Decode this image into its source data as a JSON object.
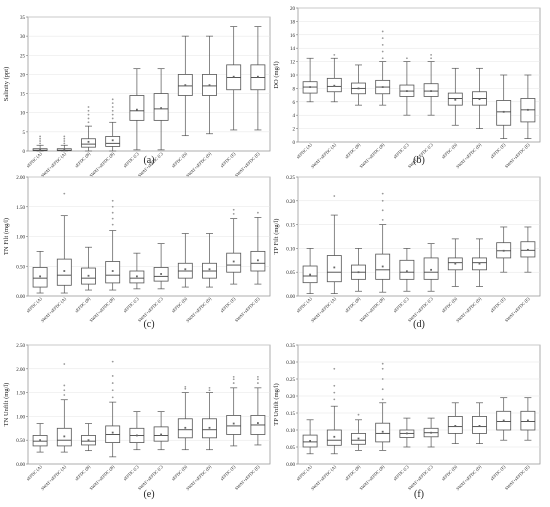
{
  "chart_data": [
    {
      "type": "box",
      "panel_label": "(a)",
      "ylabel": "Salinity (ppt)",
      "yticks": [
        0,
        5,
        10,
        15,
        20,
        25,
        30,
        35
      ],
      "ylim": [
        0,
        35
      ],
      "categories": [
        "sEFDC (A)",
        "SWAT+sEFDC (A)",
        "sEFDC (B)",
        "SWAT+sEFDC (B)",
        "sEFDC (C)",
        "SWAT+sEFDC (C)",
        "sEFDC (D)",
        "SWAT+sEFDC (D)",
        "sEFDC (E)",
        "SWAT+sEFDC (E)"
      ],
      "boxes": [
        {
          "min": 0,
          "q1": 0.1,
          "median": 0.2,
          "q3": 0.6,
          "max": 1.5,
          "mean": 0.4,
          "outliers": [
            2,
            2.6,
            3.2,
            3.8
          ]
        },
        {
          "min": 0,
          "q1": 0.1,
          "median": 0.2,
          "q3": 0.6,
          "max": 1.5,
          "mean": 0.4,
          "outliers": [
            2,
            2.6,
            3.2,
            3.8
          ]
        },
        {
          "min": 0,
          "q1": 1,
          "median": 1.8,
          "q3": 3.2,
          "max": 6.5,
          "mean": 2.4,
          "outliers": [
            7.5,
            8.5,
            9.5,
            10.5,
            11.5
          ]
        },
        {
          "min": 0,
          "q1": 1.2,
          "median": 2,
          "q3": 3.8,
          "max": 7.5,
          "mean": 2.8,
          "outliers": [
            8.5,
            9.5,
            10.5,
            11.5,
            12.5,
            13.5
          ]
        },
        {
          "min": 0.3,
          "q1": 8,
          "median": 10.5,
          "q3": 14.5,
          "max": 21.5,
          "mean": 10.8,
          "outliers": []
        },
        {
          "min": 0.3,
          "q1": 8,
          "median": 11,
          "q3": 15,
          "max": 21.5,
          "mean": 11.2,
          "outliers": []
        },
        {
          "min": 4,
          "q1": 14.5,
          "median": 17,
          "q3": 20,
          "max": 30,
          "mean": 17.2,
          "outliers": []
        },
        {
          "min": 4.5,
          "q1": 14.5,
          "median": 17,
          "q3": 20,
          "max": 30,
          "mean": 17.2,
          "outliers": []
        },
        {
          "min": 5.5,
          "q1": 16,
          "median": 19.2,
          "q3": 22.5,
          "max": 32.5,
          "mean": 19.4,
          "outliers": []
        },
        {
          "min": 5.5,
          "q1": 16,
          "median": 19.2,
          "q3": 22.5,
          "max": 32.5,
          "mean": 19.4,
          "outliers": []
        }
      ]
    },
    {
      "type": "box",
      "panel_label": "(b)",
      "ylabel": "DO (mg/l)",
      "yticks": [
        0,
        2,
        4,
        6,
        8,
        10,
        12,
        14,
        16,
        18,
        20
      ],
      "ylim": [
        0,
        20
      ],
      "categories": [
        "sEFDC (A)",
        "SWAT+sEFDC (A)",
        "sEFDC (B)",
        "SWAT+sEFDC (B)",
        "sEFDC (C)",
        "SWAT+sEFDC (C)",
        "sEFDC (D)",
        "SWAT+sEFDC (D)",
        "sEFDC (E)",
        "SWAT+sEFDC (E)"
      ],
      "boxes": [
        {
          "min": 6,
          "q1": 7.3,
          "median": 8.2,
          "q3": 9,
          "max": 12.5,
          "mean": 8.2,
          "outliers": []
        },
        {
          "min": 6,
          "q1": 7.5,
          "median": 8.3,
          "q3": 9.5,
          "max": 12.5,
          "mean": 8.4,
          "outliers": [
            13
          ]
        },
        {
          "min": 5.5,
          "q1": 7.2,
          "median": 8,
          "q3": 8.8,
          "max": 11.5,
          "mean": 8,
          "outliers": []
        },
        {
          "min": 5.5,
          "q1": 7.2,
          "median": 8.2,
          "q3": 9.2,
          "max": 12,
          "mean": 8.2,
          "outliers": [
            12.5,
            13.5,
            14.5,
            15.5,
            16.5
          ]
        },
        {
          "min": 4,
          "q1": 6.8,
          "median": 7.6,
          "q3": 8.5,
          "max": 12,
          "mean": 7.6,
          "outliers": [
            12.5
          ]
        },
        {
          "min": 4,
          "q1": 6.8,
          "median": 7.6,
          "q3": 8.7,
          "max": 12,
          "mean": 7.6,
          "outliers": [
            12.5,
            13
          ]
        },
        {
          "min": 2.5,
          "q1": 5.5,
          "median": 6.5,
          "q3": 7.3,
          "max": 11,
          "mean": 6.3,
          "outliers": []
        },
        {
          "min": 2,
          "q1": 5.5,
          "median": 6.5,
          "q3": 7.5,
          "max": 11,
          "mean": 6.4,
          "outliers": []
        },
        {
          "min": 0.5,
          "q1": 2.5,
          "median": 4.5,
          "q3": 6.2,
          "max": 10,
          "mean": 4.5,
          "outliers": []
        },
        {
          "min": 0.5,
          "q1": 3,
          "median": 4.8,
          "q3": 6.5,
          "max": 10,
          "mean": 4.8,
          "outliers": []
        }
      ]
    },
    {
      "type": "box",
      "panel_label": "(c)",
      "ylabel": "TN Filt (mg/l)",
      "yticks": [
        0.0,
        0.5,
        1.0,
        1.5,
        2.0
      ],
      "ylim": [
        0,
        2
      ],
      "decimals": 2,
      "categories": [
        "sEFDC (A)",
        "SWAT+sEFDC (A)",
        "sEFDC (B)",
        "SWAT+sEFDC (B)",
        "sEFDC (C)",
        "SWAT+sEFDC (C)",
        "sEFDC (D)",
        "SWAT+sEFDC (D)",
        "sEFDC (E)",
        "SWAT+sEFDC (E)"
      ],
      "boxes": [
        {
          "min": 0.05,
          "q1": 0.15,
          "median": 0.3,
          "q3": 0.48,
          "max": 0.75,
          "mean": 0.33,
          "outliers": []
        },
        {
          "min": 0.05,
          "q1": 0.18,
          "median": 0.35,
          "q3": 0.62,
          "max": 1.35,
          "mean": 0.42,
          "outliers": [
            1.72
          ]
        },
        {
          "min": 0.1,
          "q1": 0.2,
          "median": 0.3,
          "q3": 0.47,
          "max": 0.82,
          "mean": 0.34,
          "outliers": []
        },
        {
          "min": 0.1,
          "q1": 0.22,
          "median": 0.35,
          "q3": 0.58,
          "max": 1.1,
          "mean": 0.42,
          "outliers": [
            1.2,
            1.3,
            1.4,
            1.5,
            1.6
          ]
        },
        {
          "min": 0.12,
          "q1": 0.22,
          "median": 0.3,
          "q3": 0.42,
          "max": 0.72,
          "mean": 0.33,
          "outliers": []
        },
        {
          "min": 0.12,
          "q1": 0.25,
          "median": 0.33,
          "q3": 0.48,
          "max": 0.88,
          "mean": 0.37,
          "outliers": []
        },
        {
          "min": 0.15,
          "q1": 0.3,
          "median": 0.42,
          "q3": 0.55,
          "max": 1.05,
          "mean": 0.45,
          "outliers": []
        },
        {
          "min": 0.15,
          "q1": 0.3,
          "median": 0.42,
          "q3": 0.55,
          "max": 1.05,
          "mean": 0.45,
          "outliers": []
        },
        {
          "min": 0.2,
          "q1": 0.4,
          "median": 0.52,
          "q3": 0.72,
          "max": 1.3,
          "mean": 0.58,
          "outliers": [
            1.38,
            1.45
          ]
        },
        {
          "min": 0.2,
          "q1": 0.42,
          "median": 0.55,
          "q3": 0.75,
          "max": 1.32,
          "mean": 0.6,
          "outliers": [
            1.4
          ]
        }
      ]
    },
    {
      "type": "box",
      "panel_label": "(d)",
      "ylabel": "TP Filt (mg/l)",
      "yticks": [
        0.0,
        0.05,
        0.1,
        0.15,
        0.2,
        0.25
      ],
      "ylim": [
        0,
        0.25
      ],
      "decimals": 2,
      "categories": [
        "sEFDC (A)",
        "SWAT+sEFDC (A)",
        "sEFDC (B)",
        "SWAT+sEFDC (B)",
        "sEFDC (C)",
        "SWAT+sEFDC (C)",
        "sEFDC (D)",
        "SWAT+sEFDC (D)",
        "sEFDC (E)",
        "SWAT+sEFDC (E)"
      ],
      "boxes": [
        {
          "min": 0.005,
          "q1": 0.028,
          "median": 0.042,
          "q3": 0.063,
          "max": 0.1,
          "mean": 0.045,
          "outliers": []
        },
        {
          "min": 0.005,
          "q1": 0.03,
          "median": 0.05,
          "q3": 0.085,
          "max": 0.17,
          "mean": 0.06,
          "outliers": [
            0.21
          ]
        },
        {
          "min": 0.01,
          "q1": 0.035,
          "median": 0.05,
          "q3": 0.065,
          "max": 0.1,
          "mean": 0.05,
          "outliers": []
        },
        {
          "min": 0.008,
          "q1": 0.035,
          "median": 0.055,
          "q3": 0.088,
          "max": 0.15,
          "mean": 0.062,
          "outliers": [
            0.16,
            0.18,
            0.2,
            0.215
          ]
        },
        {
          "min": 0.01,
          "q1": 0.035,
          "median": 0.05,
          "q3": 0.075,
          "max": 0.1,
          "mean": 0.052,
          "outliers": []
        },
        {
          "min": 0.01,
          "q1": 0.035,
          "median": 0.05,
          "q3": 0.08,
          "max": 0.11,
          "mean": 0.055,
          "outliers": []
        },
        {
          "min": 0.02,
          "q1": 0.055,
          "median": 0.07,
          "q3": 0.08,
          "max": 0.12,
          "mean": 0.068,
          "outliers": []
        },
        {
          "min": 0.02,
          "q1": 0.055,
          "median": 0.07,
          "q3": 0.08,
          "max": 0.12,
          "mean": 0.068,
          "outliers": []
        },
        {
          "min": 0.05,
          "q1": 0.08,
          "median": 0.095,
          "q3": 0.112,
          "max": 0.145,
          "mean": 0.095,
          "outliers": []
        },
        {
          "min": 0.05,
          "q1": 0.082,
          "median": 0.096,
          "q3": 0.114,
          "max": 0.145,
          "mean": 0.097,
          "outliers": []
        }
      ]
    },
    {
      "type": "box",
      "panel_label": "(e)",
      "ylabel": "TN Unfilt (mg/l)",
      "yticks": [
        0.0,
        0.5,
        1.0,
        1.5,
        2.0,
        2.5
      ],
      "ylim": [
        0,
        2.5
      ],
      "decimals": 2,
      "categories": [
        "sEFDC (A)",
        "SWAT+sEFDC (A)",
        "sEFDC (B)",
        "SWAT+sEFDC (B)",
        "sEFDC (C)",
        "SWAT+sEFDC (C)",
        "sEFDC (D)",
        "SWAT+sEFDC (D)",
        "sEFDC (E)",
        "SWAT+sEFDC (E)"
      ],
      "boxes": [
        {
          "min": 0.25,
          "q1": 0.38,
          "median": 0.48,
          "q3": 0.6,
          "max": 0.85,
          "mean": 0.5,
          "outliers": []
        },
        {
          "min": 0.25,
          "q1": 0.38,
          "median": 0.5,
          "q3": 0.75,
          "max": 1.35,
          "mean": 0.58,
          "outliers": [
            1.45,
            1.55,
            1.65,
            2.1
          ]
        },
        {
          "min": 0.28,
          "q1": 0.4,
          "median": 0.48,
          "q3": 0.6,
          "max": 0.85,
          "mean": 0.5,
          "outliers": []
        },
        {
          "min": 0.15,
          "q1": 0.45,
          "median": 0.62,
          "q3": 0.8,
          "max": 1.3,
          "mean": 0.66,
          "outliers": [
            1.4,
            1.55,
            1.7,
            1.85,
            2.15
          ]
        },
        {
          "min": 0.3,
          "q1": 0.45,
          "median": 0.6,
          "q3": 0.75,
          "max": 1.1,
          "mean": 0.6,
          "outliers": []
        },
        {
          "min": 0.3,
          "q1": 0.48,
          "median": 0.6,
          "q3": 0.78,
          "max": 1.1,
          "mean": 0.62,
          "outliers": []
        },
        {
          "min": 0.3,
          "q1": 0.55,
          "median": 0.72,
          "q3": 0.95,
          "max": 1.5,
          "mean": 0.76,
          "outliers": [
            1.58,
            1.62
          ]
        },
        {
          "min": 0.3,
          "q1": 0.55,
          "median": 0.72,
          "q3": 0.95,
          "max": 1.5,
          "mean": 0.76,
          "outliers": [
            1.55,
            1.6
          ]
        },
        {
          "min": 0.38,
          "q1": 0.62,
          "median": 0.8,
          "q3": 1.02,
          "max": 1.6,
          "mean": 0.85,
          "outliers": [
            1.7,
            1.78,
            1.83
          ]
        },
        {
          "min": 0.4,
          "q1": 0.62,
          "median": 0.82,
          "q3": 1.02,
          "max": 1.6,
          "mean": 0.86,
          "outliers": [
            1.7,
            1.78,
            1.83
          ]
        }
      ]
    },
    {
      "type": "box",
      "panel_label": "(f)",
      "ylabel": "TP Unfilt (mg/l)",
      "yticks": [
        0.0,
        0.05,
        0.1,
        0.15,
        0.2,
        0.25,
        0.3,
        0.35
      ],
      "ylim": [
        0,
        0.35
      ],
      "decimals": 2,
      "categories": [
        "sEFDC (A)",
        "SWAT+sEFDC (A)",
        "sEFDC (B)",
        "SWAT+sEFDC (B)",
        "sEFDC (C)",
        "SWAT+sEFDC (C)",
        "sEFDC (D)",
        "SWAT+sEFDC (D)",
        "sEFDC (E)",
        "SWAT+sEFDC (E)"
      ],
      "boxes": [
        {
          "min": 0.03,
          "q1": 0.05,
          "median": 0.065,
          "q3": 0.085,
          "max": 0.13,
          "mean": 0.068,
          "outliers": []
        },
        {
          "min": 0.03,
          "q1": 0.055,
          "median": 0.07,
          "q3": 0.1,
          "max": 0.17,
          "mean": 0.08,
          "outliers": [
            0.19,
            0.21,
            0.23,
            0.28
          ]
        },
        {
          "min": 0.04,
          "q1": 0.058,
          "median": 0.07,
          "q3": 0.09,
          "max": 0.13,
          "mean": 0.075,
          "outliers": [
            0.145
          ]
        },
        {
          "min": 0.04,
          "q1": 0.065,
          "median": 0.09,
          "q3": 0.12,
          "max": 0.18,
          "mean": 0.095,
          "outliers": [
            0.19,
            0.22,
            0.25,
            0.28,
            0.295
          ]
        },
        {
          "min": 0.05,
          "q1": 0.078,
          "median": 0.09,
          "q3": 0.1,
          "max": 0.135,
          "mean": 0.09,
          "outliers": []
        },
        {
          "min": 0.05,
          "q1": 0.08,
          "median": 0.092,
          "q3": 0.105,
          "max": 0.135,
          "mean": 0.092,
          "outliers": []
        },
        {
          "min": 0.06,
          "q1": 0.09,
          "median": 0.11,
          "q3": 0.14,
          "max": 0.18,
          "mean": 0.112,
          "outliers": []
        },
        {
          "min": 0.06,
          "q1": 0.09,
          "median": 0.11,
          "q3": 0.14,
          "max": 0.18,
          "mean": 0.112,
          "outliers": []
        },
        {
          "min": 0.07,
          "q1": 0.1,
          "median": 0.125,
          "q3": 0.155,
          "max": 0.195,
          "mean": 0.128,
          "outliers": []
        },
        {
          "min": 0.07,
          "q1": 0.1,
          "median": 0.125,
          "q3": 0.155,
          "max": 0.195,
          "mean": 0.128,
          "outliers": []
        }
      ]
    }
  ]
}
